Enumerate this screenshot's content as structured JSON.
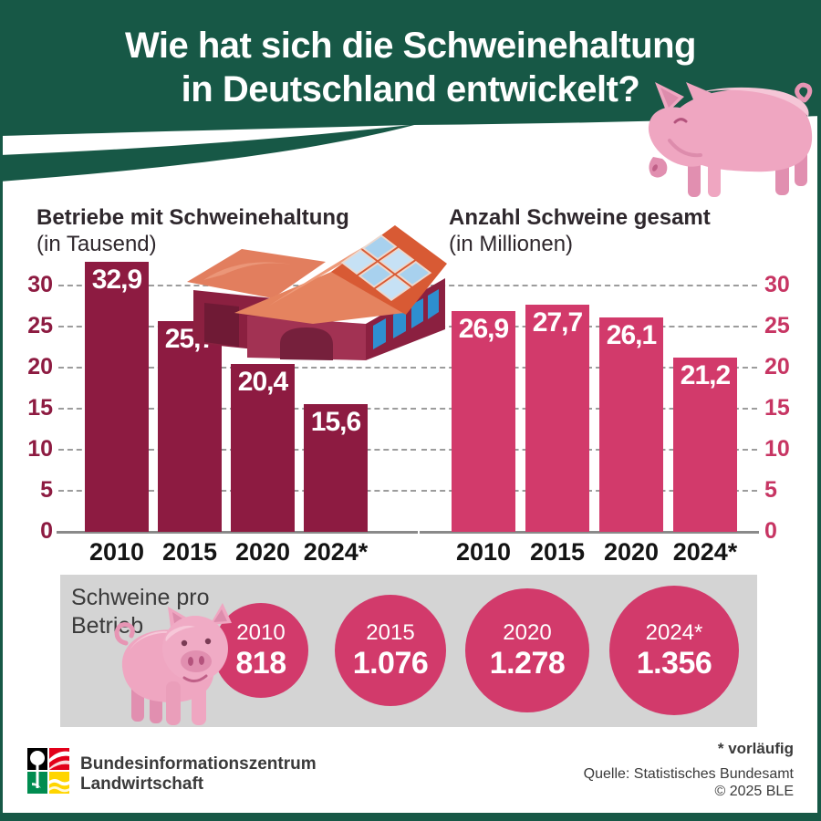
{
  "header": {
    "title_line1": "Wie hat sich die Schweinehaltung",
    "title_line2": "in Deutschland entwickelt?"
  },
  "chart_data": [
    {
      "type": "bar",
      "title": "Betriebe mit Schweinehaltung",
      "subtitle": "(in Tausend)",
      "categories": [
        "2010",
        "2015",
        "2020",
        "2024*"
      ],
      "values": [
        32.9,
        25.7,
        20.4,
        15.6
      ],
      "value_labels": [
        "32,9",
        "25,7",
        "20,4",
        "15,6"
      ],
      "bar_color": "#8d1b41",
      "tick_color": "#8d1b41",
      "axis_ticks": [
        0,
        5,
        10,
        15,
        20,
        25,
        30
      ],
      "ylim": [
        0,
        33.5
      ],
      "axis_side": "left",
      "grid": "dashed"
    },
    {
      "type": "bar",
      "title": "Anzahl Schweine gesamt",
      "subtitle": "(in Millionen)",
      "categories": [
        "2010",
        "2015",
        "2020",
        "2024*"
      ],
      "values": [
        26.9,
        27.7,
        26.1,
        21.2
      ],
      "value_labels": [
        "26,9",
        "27,7",
        "26,1",
        "21,2"
      ],
      "bar_color": "#d23a6b",
      "tick_color": "#c73563",
      "axis_ticks": [
        0,
        5,
        10,
        15,
        20,
        25,
        30
      ],
      "ylim": [
        0,
        33.5
      ],
      "axis_side": "right",
      "grid": "dashed"
    },
    {
      "type": "bubble",
      "title_line1": "Schweine pro",
      "title_line2": "Betrieb",
      "categories": [
        "2010",
        "2015",
        "2020",
        "2024*"
      ],
      "values": [
        818,
        1076,
        1278,
        1356
      ],
      "value_labels": [
        "818",
        "1.076",
        "1.278",
        "1.356"
      ],
      "bubble_color": "#d23a6b"
    }
  ],
  "footer": {
    "org_line1": "Bundesinformationszentrum",
    "org_line2": "Landwirtschaft",
    "note": "* vorläufig",
    "source_line1": "Quelle: Statistisches Bundesamt",
    "source_line2": "© 2025 BLE"
  },
  "colors": {
    "header_green": "#175846",
    "dark_bar": "#8d1b41",
    "pink_bar": "#d23a6b",
    "panel_gray": "#d4d4d4",
    "pig_pink": "#efa6c1"
  }
}
